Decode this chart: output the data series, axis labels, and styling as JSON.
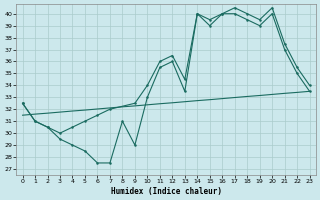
{
  "bg_color": "#cce8ec",
  "grid_color": "#aacccc",
  "line_color": "#1a6b60",
  "xlabel": "Humidex (Indice chaleur)",
  "xlim": [
    -0.5,
    23.5
  ],
  "ylim": [
    26.5,
    40.8
  ],
  "yticks": [
    27,
    28,
    29,
    30,
    31,
    32,
    33,
    34,
    35,
    36,
    37,
    38,
    39,
    40
  ],
  "xticks": [
    0,
    1,
    2,
    3,
    4,
    5,
    6,
    7,
    8,
    9,
    10,
    11,
    12,
    13,
    14,
    15,
    16,
    17,
    18,
    19,
    20,
    21,
    22,
    23
  ],
  "line1_x": [
    0,
    1,
    2,
    3,
    4,
    5,
    6,
    7,
    8,
    9,
    10,
    11,
    12,
    13,
    14,
    15,
    16,
    17,
    18,
    19,
    20,
    21,
    22,
    23
  ],
  "line1_y": [
    32.5,
    31.0,
    30.5,
    29.5,
    29.0,
    28.5,
    27.5,
    27.5,
    31.0,
    29.0,
    33.0,
    35.5,
    36.0,
    33.5,
    40.0,
    39.0,
    40.0,
    40.0,
    39.5,
    39.0,
    40.0,
    37.0,
    35.0,
    33.5
  ],
  "line2_x": [
    0,
    1,
    2,
    3,
    4,
    5,
    6,
    7,
    9,
    10,
    11,
    12,
    13,
    14,
    15,
    16,
    17,
    18,
    19,
    20,
    21,
    22,
    23
  ],
  "line2_y": [
    32.5,
    31.0,
    30.5,
    30.0,
    30.5,
    31.0,
    31.5,
    32.0,
    32.5,
    34.0,
    36.0,
    36.5,
    34.5,
    40.0,
    39.5,
    40.0,
    40.5,
    40.0,
    39.5,
    40.5,
    37.5,
    35.5,
    34.0
  ],
  "line3_x": [
    0,
    1,
    2,
    3,
    4,
    5,
    6,
    7,
    8,
    9,
    10,
    11,
    12,
    13,
    14,
    15,
    16,
    17,
    18,
    19,
    20,
    21,
    22,
    23
  ],
  "line3_y": [
    31.5,
    31.59,
    31.67,
    31.76,
    31.85,
    31.93,
    32.02,
    32.11,
    32.2,
    32.28,
    32.37,
    32.46,
    32.54,
    32.63,
    32.72,
    32.8,
    32.89,
    32.98,
    33.07,
    33.15,
    33.24,
    33.33,
    33.41,
    33.5
  ]
}
